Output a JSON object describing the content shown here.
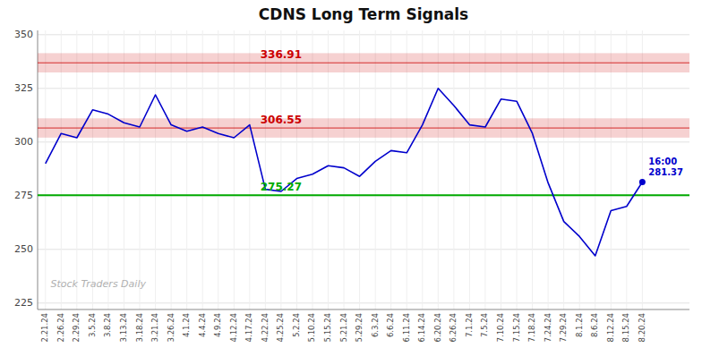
{
  "chart_data": {
    "type": "line",
    "title": "CDNS Long Term Signals",
    "categories": [
      "2.21.24",
      "2.26.24",
      "2.29.24",
      "3.5.24",
      "3.8.24",
      "3.13.24",
      "3.18.24",
      "3.21.24",
      "3.26.24",
      "4.1.24",
      "4.4.24",
      "4.9.24",
      "4.12.24",
      "4.17.24",
      "4.22.24",
      "4.25.24",
      "5.2.24",
      "5.10.24",
      "5.15.24",
      "5.21.24",
      "5.29.24",
      "6.3.24",
      "6.6.24",
      "6.11.24",
      "6.14.24",
      "6.20.24",
      "6.26.24",
      "7.1.24",
      "7.5.24",
      "7.10.24",
      "7.15.24",
      "7.18.24",
      "7.24.24",
      "7.29.24",
      "8.1.24",
      "8.6.24",
      "8.12.24",
      "8.15.24",
      "8.20.24"
    ],
    "values": [
      290,
      304,
      302,
      315,
      313,
      309,
      307,
      322,
      308,
      305,
      307,
      304,
      302,
      308,
      278,
      277,
      283,
      285,
      289,
      288,
      284,
      291,
      296,
      295,
      308,
      325,
      317,
      308,
      307,
      320,
      319,
      304,
      281,
      263,
      256,
      247,
      268,
      270,
      281.37
    ],
    "color": "#0000cc",
    "ylim": [
      222,
      352
    ],
    "yticks": [
      225,
      250,
      275,
      300,
      325,
      350
    ],
    "grid": true,
    "hlines": [
      {
        "value": 336.91,
        "color": "#cc0000",
        "type": "band"
      },
      {
        "value": 306.55,
        "color": "#cc0000",
        "type": "band"
      },
      {
        "value": 275.27,
        "color": "#00aa00",
        "type": "line"
      }
    ],
    "annotations": [
      {
        "text": "16:00",
        "value": 281.37
      }
    ],
    "watermark": "Stock Traders Daily"
  }
}
